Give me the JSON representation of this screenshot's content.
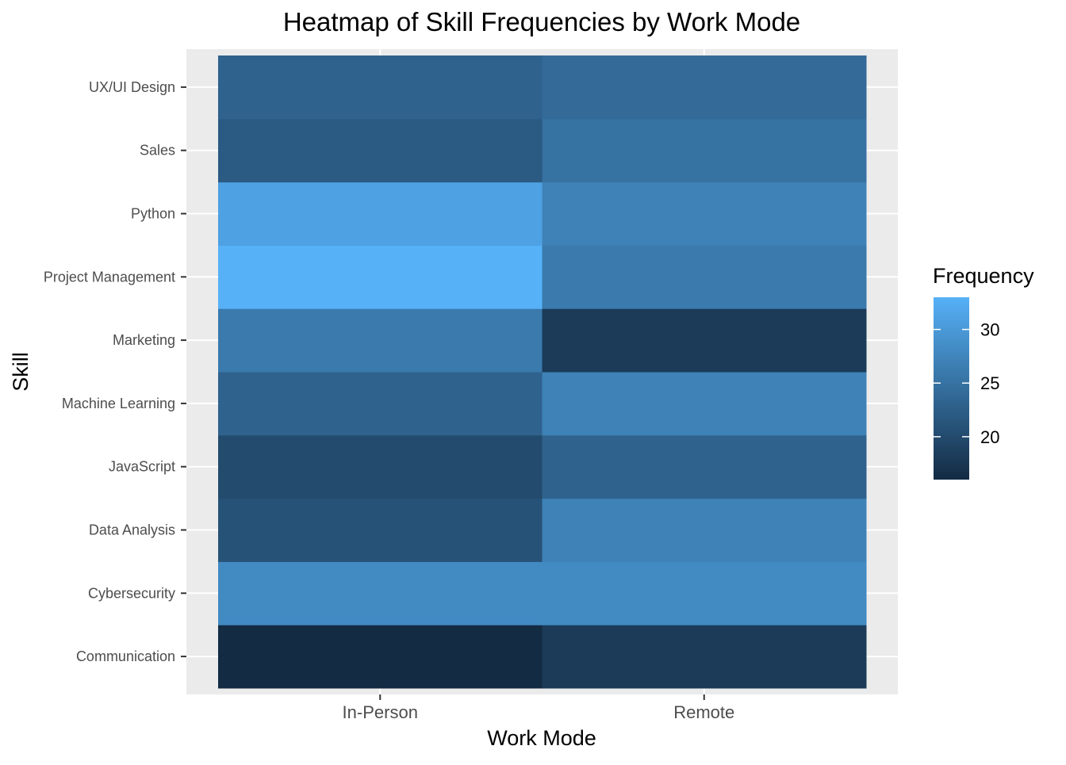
{
  "chart_data": {
    "type": "heatmap",
    "title": "Heatmap of Skill Frequencies by Work Mode",
    "xlabel": "Work Mode",
    "ylabel": "Skill",
    "x_categories": [
      "In-Person",
      "Remote"
    ],
    "y_categories": [
      "Communication",
      "Cybersecurity",
      "Data Analysis",
      "JavaScript",
      "Machine Learning",
      "Marketing",
      "Project Management",
      "Python",
      "Sales",
      "UX/UI Design"
    ],
    "values": {
      "In-Person": [
        16,
        28,
        21,
        20,
        23,
        26,
        33,
        31,
        22,
        23
      ],
      "Remote": [
        18,
        28,
        27,
        23,
        27,
        18,
        26,
        27,
        25,
        24
      ]
    },
    "legend": {
      "title": "Frequency",
      "ticks": [
        20,
        25,
        30
      ],
      "range": [
        16,
        33
      ],
      "low_color": "#132B43",
      "high_color": "#56B1F7",
      "position": "right"
    },
    "panel_background": "#EBEBEB",
    "grid": true
  }
}
